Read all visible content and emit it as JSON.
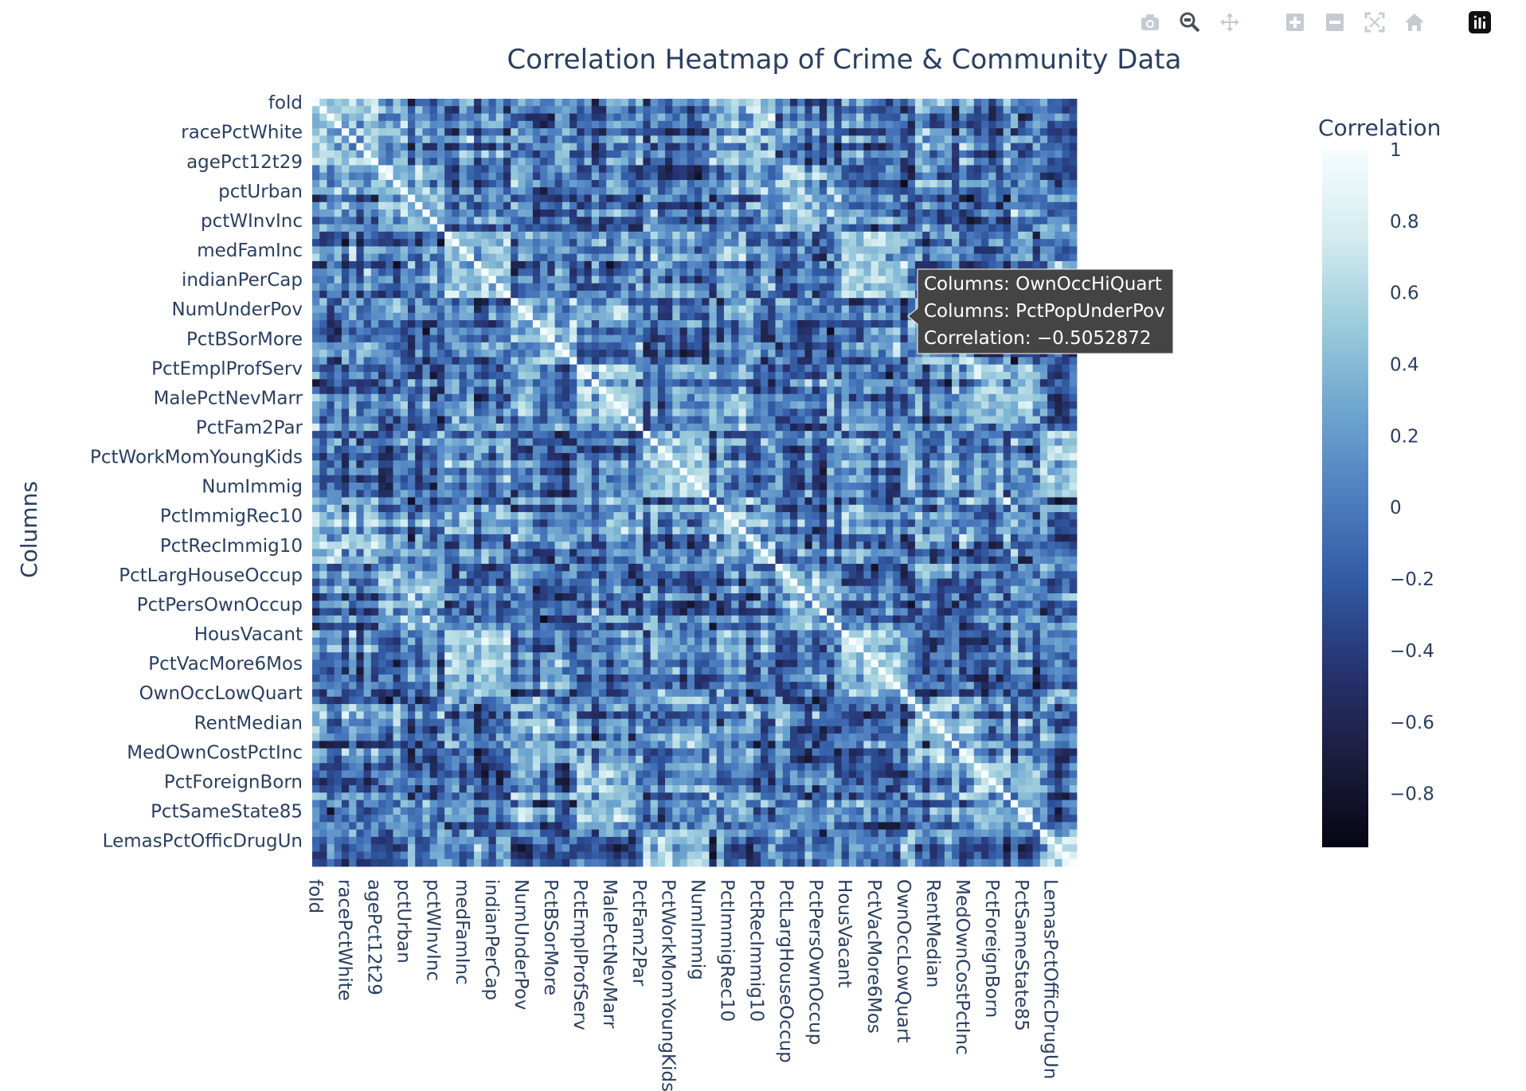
{
  "modebar": {
    "buttons": [
      {
        "name": "camera-icon"
      },
      {
        "name": "zoom-icon"
      },
      {
        "name": "pan-icon"
      },
      {
        "name": "zoom-in-icon"
      },
      {
        "name": "zoom-out-icon"
      },
      {
        "name": "autoscale-icon"
      },
      {
        "name": "reset-axes-icon"
      },
      {
        "name": "plotly-logo-icon"
      }
    ]
  },
  "chart_data": {
    "type": "heatmap",
    "title": "Correlation Heatmap of Crime & Community Data",
    "xlabel": "",
    "ylabel": "Columns",
    "tick_labels": [
      "fold",
      "racePctWhite",
      "agePct12t29",
      "pctUrban",
      "pctWInvInc",
      "medFamInc",
      "indianPerCap",
      "NumUnderPov",
      "PctBSorMore",
      "PctEmplProfServ",
      "MalePctNevMarr",
      "PctFam2Par",
      "PctWorkMomYoungKids",
      "NumImmig",
      "PctImmigRec10",
      "PctRecImmig10",
      "PctLargHouseOccup",
      "PctPersOwnOccup",
      "HousVacant",
      "PctVacMore6Mos",
      "OwnOccLowQuart",
      "RentMedian",
      "MedOwnCostPctInc",
      "PctForeignBorn",
      "PctSameState85",
      "LemasPctOfficDrugUn"
    ],
    "n_cells": 104,
    "colorscale": [
      "#050514",
      "#1b1d3c",
      "#26326e",
      "#3058a1",
      "#4d7ec0",
      "#6ea5cf",
      "#9cccdc",
      "#d4ecef",
      "#f5fdfe"
    ],
    "colorbar": {
      "title": "Correlation",
      "range": [
        -0.95,
        1
      ],
      "tickvals": [
        1,
        0.8,
        0.6,
        0.4,
        0.2,
        0,
        -0.2,
        -0.4,
        -0.6,
        -0.8
      ],
      "ticktext": [
        "1",
        "0.8",
        "0.6",
        "0.4",
        "0.2",
        "0",
        "−0.2",
        "−0.4",
        "−0.6",
        "−0.8"
      ]
    },
    "hover": {
      "lines": [
        "Columns: OwnOccHiQuart",
        "Columns: PctPopUnderPov",
        "Correlation: −0.5052872"
      ]
    }
  }
}
